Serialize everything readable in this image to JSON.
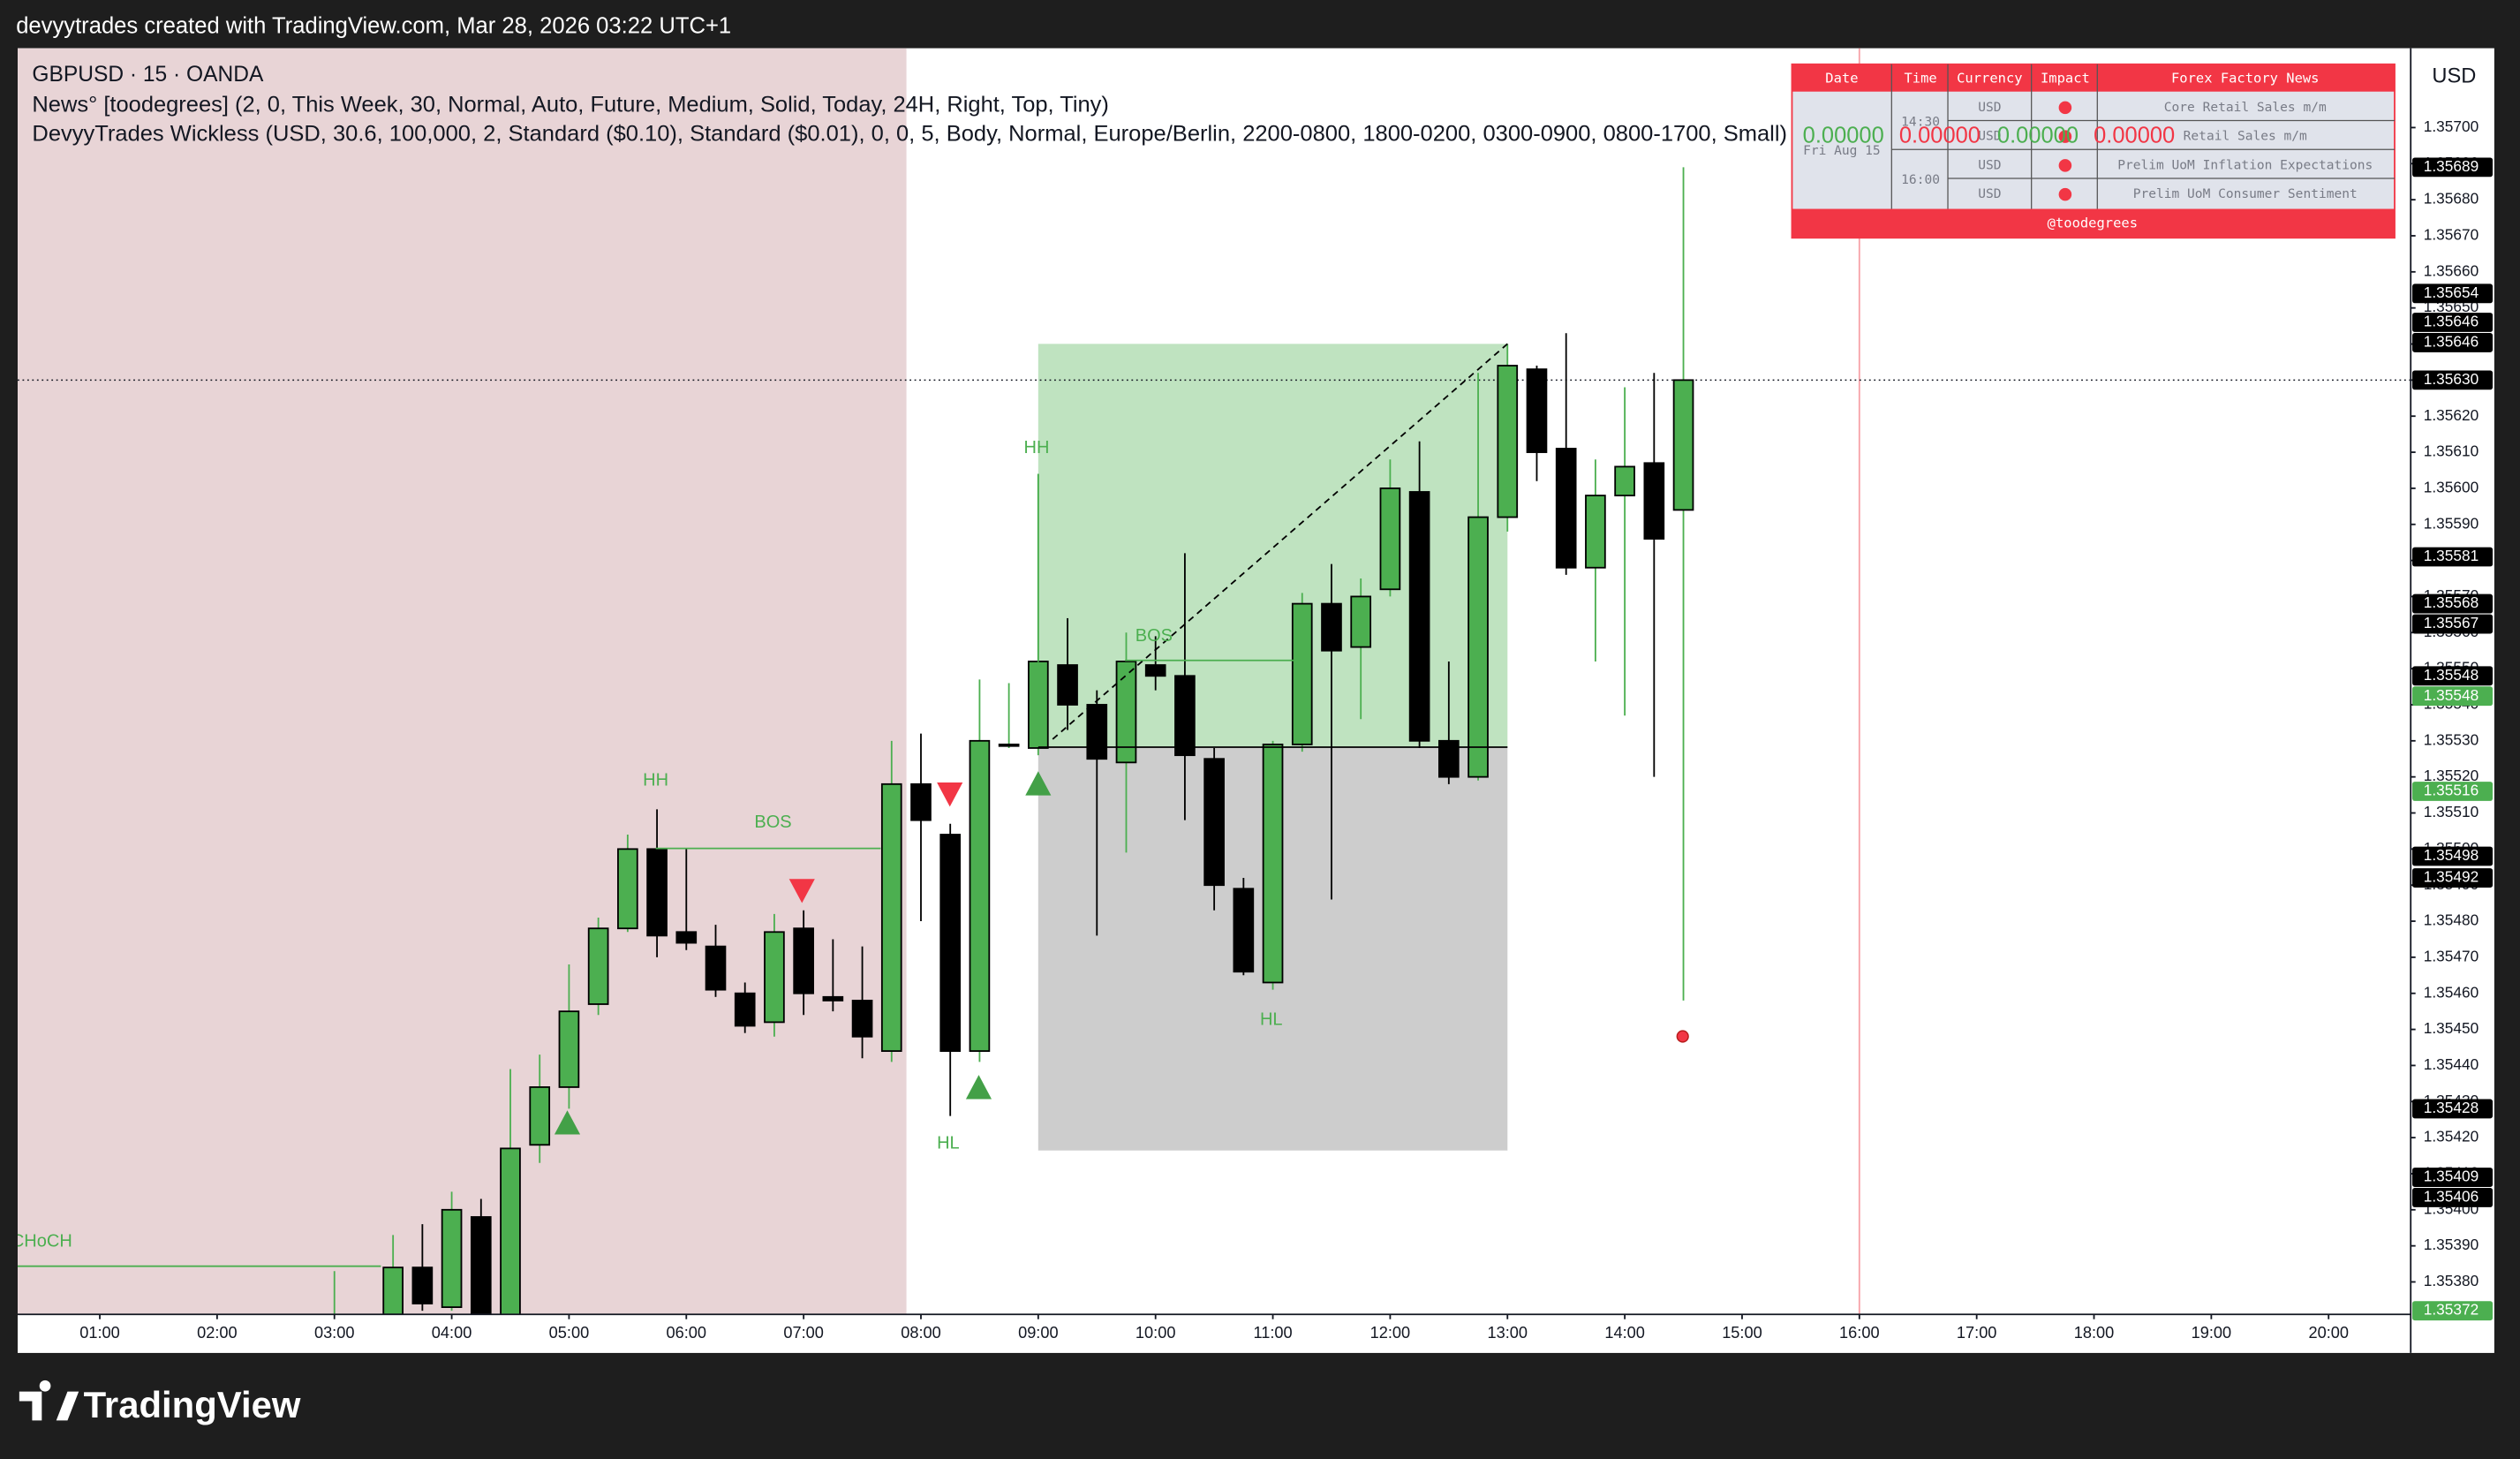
{
  "attribution": "devyytrades created with TradingView.com, Mar 28, 2026 03:22 UTC+1",
  "branding": "TradingView",
  "chart_data": {
    "type": "candlestick",
    "title": "GBPUSD · 15 · OANDA",
    "indicators": [
      "News° [toodegrees] (2, 0, This Week, 30, Normal, Auto, Future, Medium, Solid, Today, 24H, Right, Top, Tiny)",
      "DevyyTrades Wickless (USD, 30.6, 100,000, 2, Standard ($0.10), Standard ($0.01), 0, 0, 5, Body, Normal, Europe/Berlin, 2200-0800, 1800-0200, 0300-0900, 0800-1700, Small)"
    ],
    "currency": "USD",
    "x": [
      "03:00",
      "03:30",
      "03:45",
      "04:00",
      "04:15",
      "04:30",
      "04:45",
      "05:00",
      "05:15",
      "05:30",
      "05:45",
      "06:00",
      "06:15",
      "06:30",
      "06:45",
      "07:00",
      "07:15",
      "07:30",
      "07:45",
      "08:00",
      "08:15",
      "08:30",
      "08:45",
      "09:00",
      "09:15",
      "09:30",
      "09:45",
      "10:00",
      "10:15",
      "10:30",
      "10:45",
      "11:00",
      "11:15",
      "11:30",
      "11:45",
      "12:00",
      "12:15",
      "12:30",
      "12:45",
      "13:00",
      "13:15",
      "13:30",
      "13:45",
      "14:00",
      "14:15",
      "14:30"
    ],
    "open": [
      1.35367,
      1.35371,
      1.35384,
      1.35373,
      1.35398,
      1.3537,
      1.35418,
      1.35434,
      1.35457,
      1.35478,
      1.355,
      1.35477,
      1.35473,
      1.3546,
      1.35452,
      1.35478,
      1.35459,
      1.35458,
      1.35444,
      1.35518,
      1.35504,
      1.35444,
      1.35529,
      1.35528,
      1.35551,
      1.3554,
      1.35524,
      1.35551,
      1.35548,
      1.35525,
      1.35489,
      1.35463,
      1.35529,
      1.35568,
      1.35556,
      1.35572,
      1.35599,
      1.3553,
      1.3552,
      1.35592,
      1.35633,
      1.35611,
      1.35578,
      1.35598,
      1.35607,
      1.35594
    ],
    "high": [
      1.35383,
      1.35393,
      1.35396,
      1.35405,
      1.35403,
      1.35439,
      1.35443,
      1.35468,
      1.35481,
      1.35504,
      1.35511,
      1.355,
      1.35479,
      1.35463,
      1.35482,
      1.35483,
      1.35475,
      1.35473,
      1.3553,
      1.35532,
      1.35507,
      1.35547,
      1.35546,
      1.35604,
      1.35564,
      1.35544,
      1.3556,
      1.35559,
      1.35582,
      1.35528,
      1.35492,
      1.3553,
      1.35571,
      1.35579,
      1.35575,
      1.35608,
      1.35613,
      1.35552,
      1.35632,
      1.3564,
      1.35634,
      1.35643,
      1.35608,
      1.35628,
      1.35632,
      1.35689
    ],
    "low": [
      1.35363,
      1.3537,
      1.35372,
      1.35372,
      1.35365,
      1.35365,
      1.35413,
      1.35428,
      1.35454,
      1.35477,
      1.3547,
      1.35472,
      1.35459,
      1.35449,
      1.35448,
      1.35454,
      1.35455,
      1.35442,
      1.35441,
      1.3548,
      1.35426,
      1.35441,
      1.35528,
      1.35526,
      1.35533,
      1.35476,
      1.35499,
      1.35544,
      1.35508,
      1.35483,
      1.35465,
      1.35461,
      1.35527,
      1.35486,
      1.35536,
      1.3557,
      1.35528,
      1.35518,
      1.35519,
      1.35588,
      1.35602,
      1.35576,
      1.35552,
      1.35537,
      1.3552,
      1.35458
    ],
    "close": [
      1.35369,
      1.35384,
      1.35374,
      1.354,
      1.3537,
      1.35417,
      1.35434,
      1.35455,
      1.35478,
      1.355,
      1.35476,
      1.35474,
      1.35461,
      1.35451,
      1.35477,
      1.3546,
      1.35458,
      1.35448,
      1.35518,
      1.35508,
      1.35444,
      1.3553,
      1.35529,
      1.35552,
      1.3554,
      1.35525,
      1.35552,
      1.35548,
      1.35526,
      1.3549,
      1.35466,
      1.35529,
      1.35568,
      1.35555,
      1.3557,
      1.356,
      1.3553,
      1.3552,
      1.35592,
      1.35634,
      1.3561,
      1.35578,
      1.35598,
      1.35606,
      1.35586,
      1.3563
    ],
    "up_color": "#4caf50",
    "down_color": "#000000",
    "border_color": "#000000",
    "xlim": [
      "00:18",
      "20:42"
    ],
    "xticks": [
      "01:00",
      "02:00",
      "03:00",
      "04:00",
      "05:00",
      "06:00",
      "07:00",
      "08:00",
      "09:00",
      "10:00",
      "11:00",
      "12:00",
      "13:00",
      "14:00",
      "15:00",
      "16:00",
      "17:00",
      "18:00",
      "19:00",
      "20:00"
    ],
    "ylim": [
      1.35371,
      1.35722
    ],
    "yticks": [
      {
        "value": 1.3538,
        "label": "1.35380"
      },
      {
        "value": 1.3539,
        "label": "1.35390"
      },
      {
        "value": 1.354,
        "label": "1.35400"
      },
      {
        "value": 1.3541,
        "label": "1.35410"
      },
      {
        "value": 1.3542,
        "label": "1.35420"
      },
      {
        "value": 1.3543,
        "label": "1.35430"
      },
      {
        "value": 1.3544,
        "label": "1.35440"
      },
      {
        "value": 1.3545,
        "label": "1.35450"
      },
      {
        "value": 1.3546,
        "label": "1.35460"
      },
      {
        "value": 1.3547,
        "label": "1.35470"
      },
      {
        "value": 1.3548,
        "label": "1.35480"
      },
      {
        "value": 1.3549,
        "label": "1.35490"
      },
      {
        "value": 1.355,
        "label": "1.35500"
      },
      {
        "value": 1.3551,
        "label": "1.35510"
      },
      {
        "value": 1.3552,
        "label": "1.35520"
      },
      {
        "value": 1.3553,
        "label": "1.35530"
      },
      {
        "value": 1.3554,
        "label": "1.35540"
      },
      {
        "value": 1.3555,
        "label": "1.35550"
      },
      {
        "value": 1.3556,
        "label": "1.35560"
      },
      {
        "value": 1.3557,
        "label": "1.35570"
      },
      {
        "value": 1.3558,
        "label": "1.35580"
      },
      {
        "value": 1.3559,
        "label": "1.35590"
      },
      {
        "value": 1.356,
        "label": "1.35600"
      },
      {
        "value": 1.3561,
        "label": "1.35610"
      },
      {
        "value": 1.3562,
        "label": "1.35620"
      },
      {
        "value": 1.3563,
        "label": "1.35630"
      },
      {
        "value": 1.3564,
        "label": "1.35640"
      },
      {
        "value": 1.3565,
        "label": "1.35650"
      },
      {
        "value": 1.3566,
        "label": "1.35660"
      },
      {
        "value": 1.3567,
        "label": "1.35670"
      },
      {
        "value": 1.3568,
        "label": "1.35680"
      },
      {
        "value": 1.3569,
        "label": "1.35690"
      },
      {
        "value": 1.357,
        "label": "1.35700"
      }
    ],
    "grid": false,
    "current_price": 1.3563,
    "price_markers": [
      {
        "value": 1.35689,
        "label": "1.35689",
        "color": "#000000"
      },
      {
        "value": 1.35654,
        "label": "1.35654",
        "color": "#000000"
      },
      {
        "value": 1.35646,
        "label": "1.35646",
        "color": "#000000"
      },
      {
        "value": 1.35646,
        "label": "1.35646",
        "color": "#000000"
      },
      {
        "value": 1.3563,
        "label": "1.35630",
        "color": "#000000"
      },
      {
        "value": 1.35581,
        "label": "1.35581",
        "color": "#000000"
      },
      {
        "value": 1.35568,
        "label": "1.35568",
        "color": "#000000"
      },
      {
        "value": 1.35567,
        "label": "1.35567",
        "color": "#000000"
      },
      {
        "value": 1.35548,
        "label": "1.35548",
        "color": "#000000"
      },
      {
        "value": 1.35548,
        "label": "1.35548",
        "color": "#4caf50"
      },
      {
        "value": 1.35516,
        "label": "1.35516",
        "color": "#4caf50"
      },
      {
        "value": 1.35498,
        "label": "1.35498",
        "color": "#000000"
      },
      {
        "value": 1.35492,
        "label": "1.35492",
        "color": "#000000"
      },
      {
        "value": 1.35428,
        "label": "1.35428",
        "color": "#000000"
      },
      {
        "value": 1.35409,
        "label": "1.35409",
        "color": "#000000"
      },
      {
        "value": 1.35406,
        "label": "1.35406",
        "color": "#000000"
      },
      {
        "value": 1.35372,
        "label": "1.35372",
        "color": "#4caf50"
      }
    ],
    "annotations": [
      "HH",
      "BOS",
      "HL",
      "HH",
      "BOS",
      "HL",
      "CHoCH"
    ]
  },
  "news_table": {
    "headers": [
      "Date",
      "Time",
      "Currency",
      "Impact",
      "Forex Factory News"
    ],
    "date": "Fri Aug 15",
    "times": [
      "14:30",
      "16:00"
    ],
    "rows": [
      {
        "currency": "USD",
        "event": "Core Retail Sales m/m"
      },
      {
        "currency": "USD",
        "event": "Retail Sales m/m"
      },
      {
        "currency": "USD",
        "event": "Prelim UoM Inflation Expectations"
      },
      {
        "currency": "USD",
        "event": "Prelim UoM Consumer Sentiment"
      }
    ],
    "overlay_values": [
      "0.00000",
      "0.00000",
      "0.00000",
      "0.00000"
    ],
    "footer": "@toodegrees"
  }
}
